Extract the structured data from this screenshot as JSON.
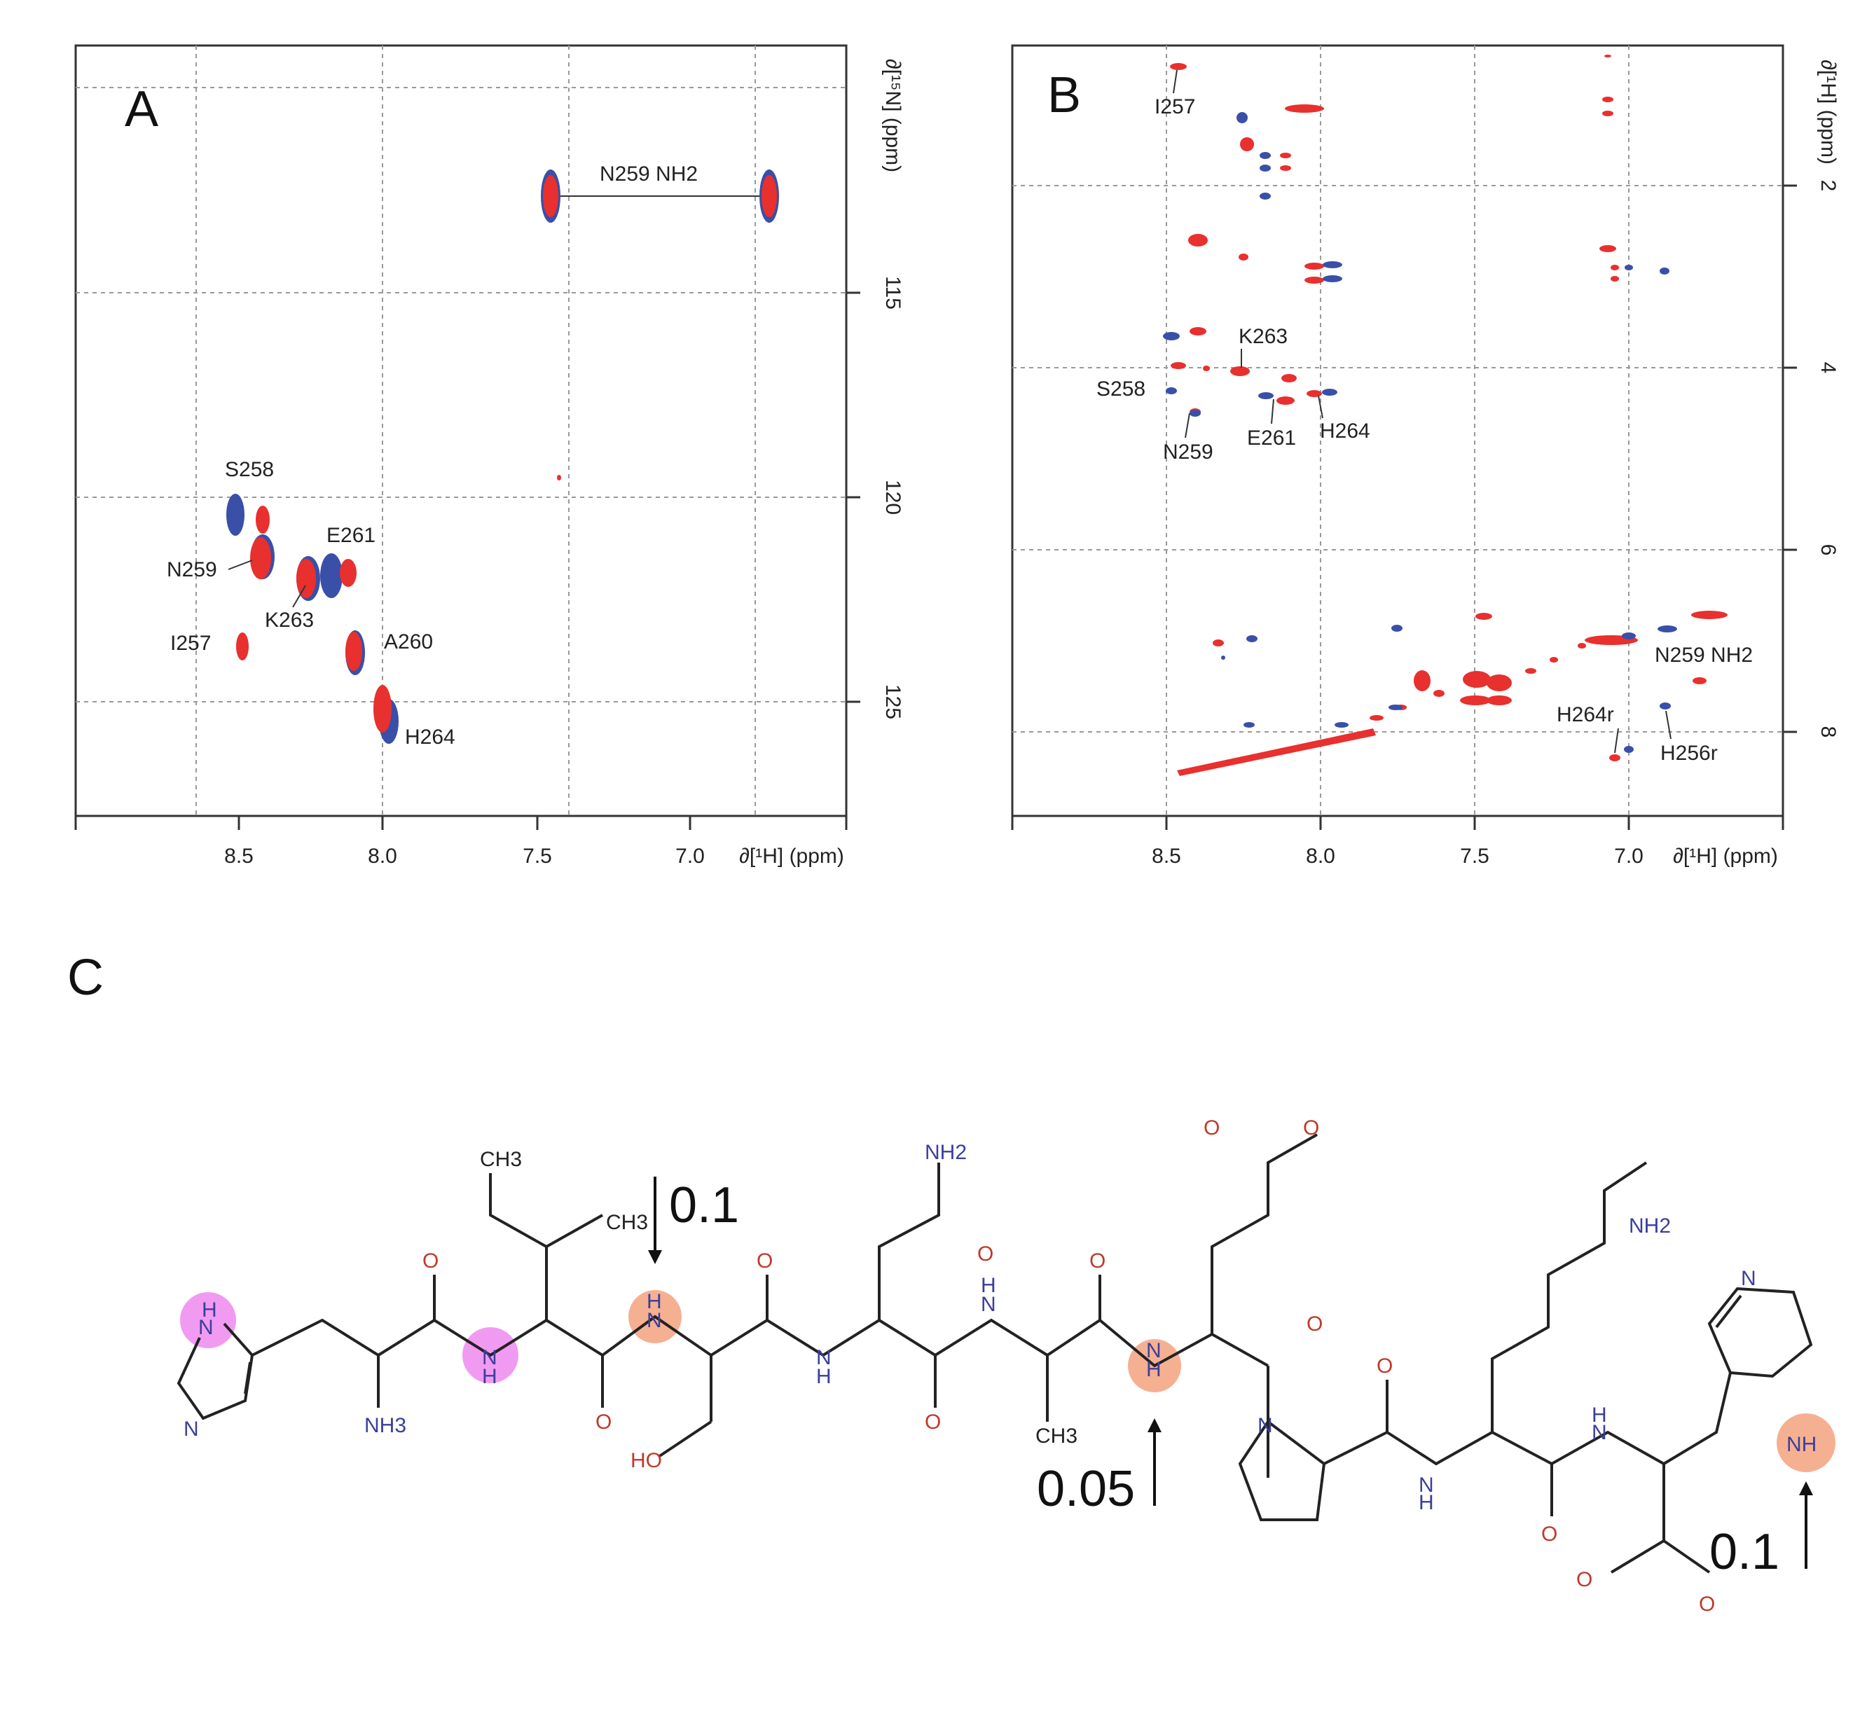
{
  "panel_a": {
    "letter": "A",
    "x_axis_label": "∂[¹H] (ppm)",
    "y_axis_label": "∂[¹⁵N] (ppm)",
    "x_ticks": [
      "8.5",
      "8.0",
      "7.5",
      "7.0"
    ],
    "y_ticks": [
      "115",
      "120",
      "125"
    ],
    "peak_labels": [
      "N259 NH2",
      "S258",
      "E261",
      "N259",
      "K263",
      "I257",
      "A260",
      "H264"
    ]
  },
  "panel_b": {
    "letter": "B",
    "x_axis_label": "∂[¹H] (ppm)",
    "y_axis_label": "∂[¹H] (ppm)",
    "x_ticks": [
      "8.5",
      "8.0",
      "7.5",
      "7.0"
    ],
    "y_ticks": [
      "2",
      "4",
      "6",
      "8"
    ],
    "peak_labels": [
      "I257",
      "K263",
      "S258",
      "E261",
      "H264",
      "N259",
      "N259 NH2",
      "H264r",
      "H256r"
    ]
  },
  "panel_c": {
    "letter": "C",
    "shift_labels": [
      "0.1",
      "0.05",
      "0.1"
    ],
    "atoms": {
      "ch3": "CH3",
      "nh2": "NH2",
      "nh3": "NH3",
      "o": "O",
      "o_minus": "O",
      "h": "H",
      "n": "N",
      "nh": "NH",
      "ho": "HO"
    }
  },
  "colors": {
    "red": "#e8302e",
    "blue": "#3a4fa8",
    "pink_highlight": "#ee88ee",
    "orange_highlight": "#f3a27f"
  }
}
